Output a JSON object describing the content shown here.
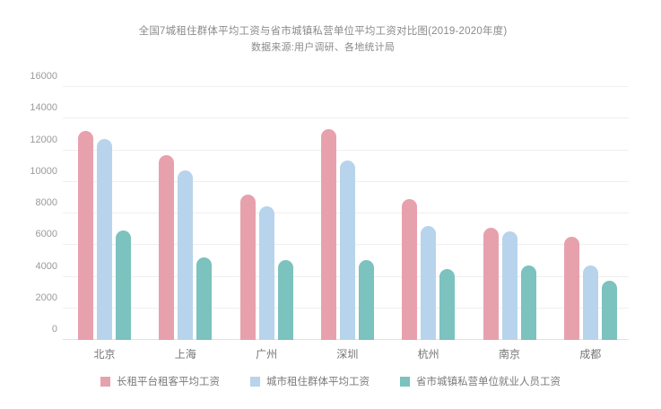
{
  "header": {
    "title": "全国7城租住群体平均工资与省市城镇私营单位平均工资对比图(2019-2020年度)",
    "subtitle": "数据来源:用户调研、各地统计局"
  },
  "chart_data": {
    "type": "bar",
    "title": "全国7城租住群体平均工资与省市城镇私营单位平均工资对比图(2019-2020年度)",
    "subtitle": "数据来源:用户调研、各地统计局",
    "categories": [
      "北京",
      "上海",
      "广州",
      "深圳",
      "杭州",
      "南京",
      "成都"
    ],
    "series": [
      {
        "name": "长租平台租客平均工资",
        "color": "#e7a1ad",
        "values": [
          13200,
          11700,
          9200,
          13350,
          8900,
          7100,
          6550
        ]
      },
      {
        "name": "城市租住群体平均工资",
        "color": "#b7d4ec",
        "values": [
          12700,
          10750,
          8450,
          11350,
          7200,
          6850,
          4700
        ]
      },
      {
        "name": "省市城镇私营单位就业人员工资",
        "color": "#7cc2bf",
        "values": [
          6900,
          5200,
          5050,
          5050,
          4500,
          4700,
          3750
        ]
      }
    ],
    "ylabel": "",
    "xlabel": "",
    "ylim": [
      0,
      16000
    ],
    "yticks": [
      0,
      2000,
      4000,
      6000,
      8000,
      10000,
      12000,
      14000,
      16000
    ],
    "grid": true,
    "legend_position": "bottom",
    "colors": {
      "background": "#ffffff",
      "gridline": "#efefef",
      "axis_line": "#e2e2e2",
      "tick_text": "#9a9a9a",
      "category_text": "#757575",
      "title_text": "#8b8b8b",
      "legend_text": "#7a7a7a"
    }
  }
}
